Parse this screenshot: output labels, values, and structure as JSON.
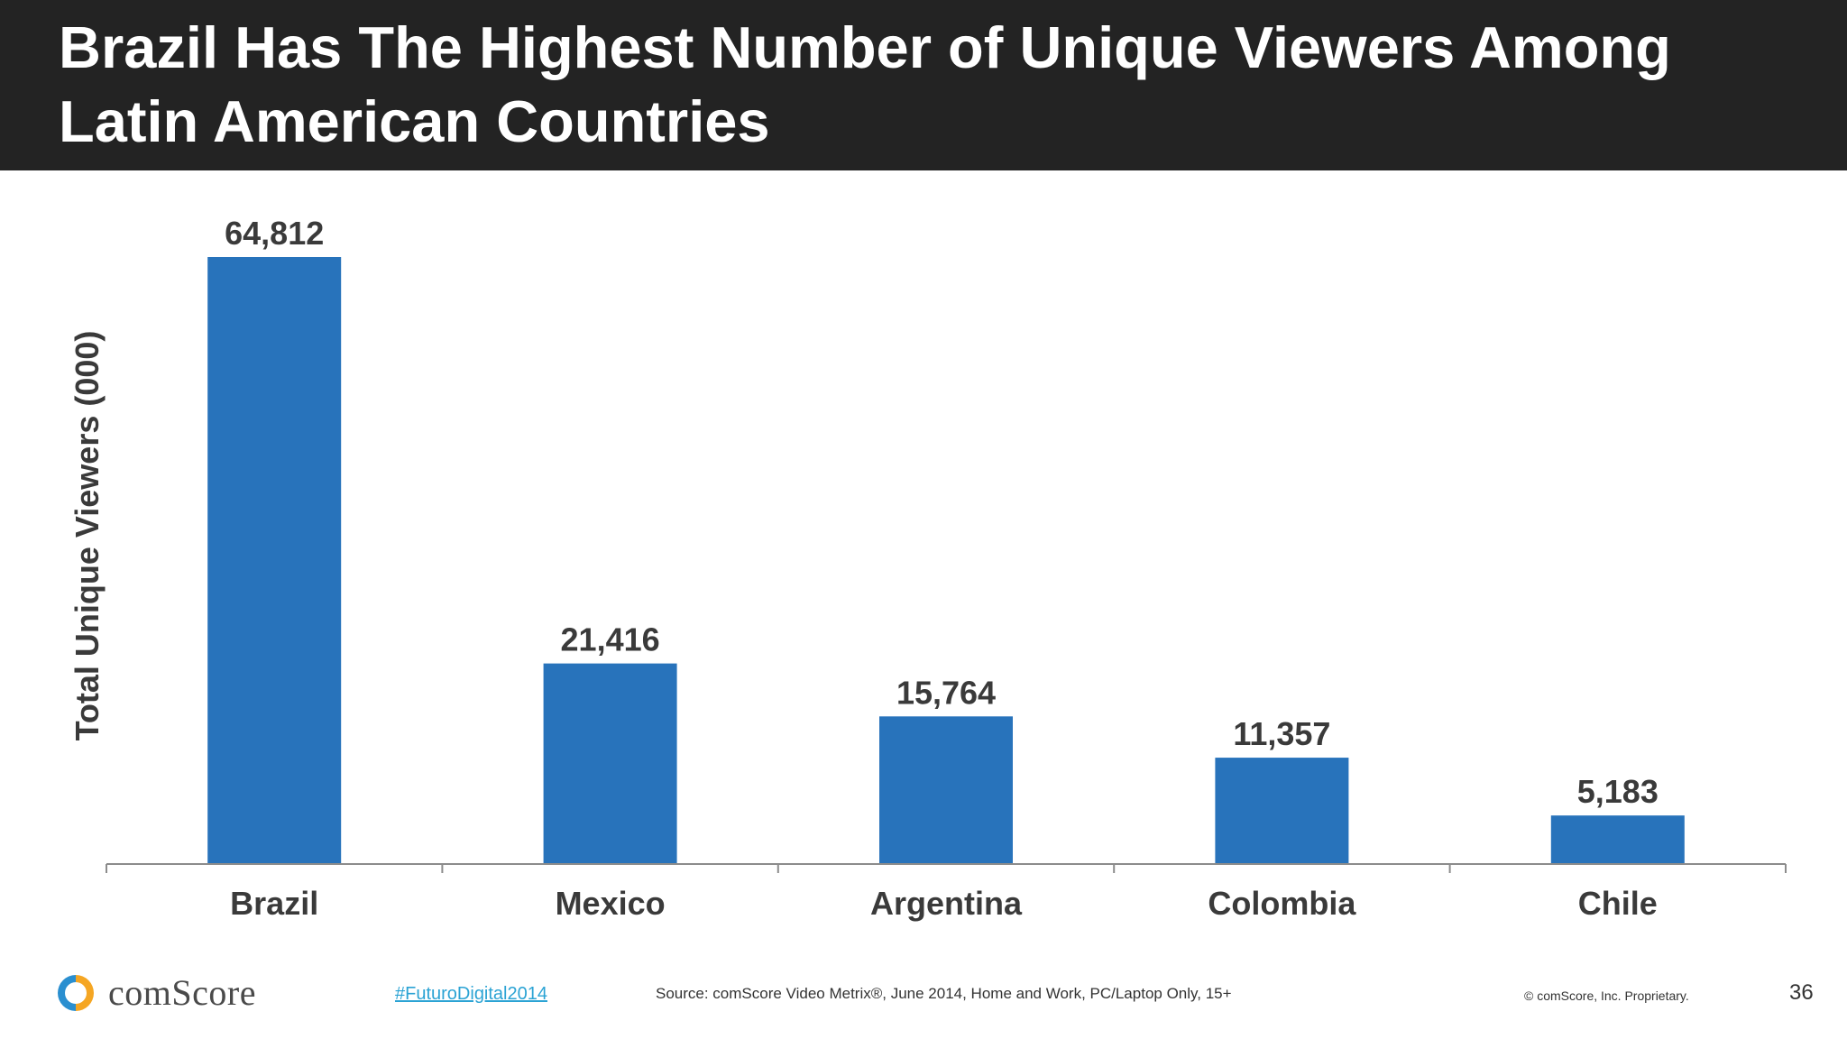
{
  "header": {
    "title": "Brazil Has The Highest Number of Unique Viewers Among Latin American Countries"
  },
  "chart_data": {
    "type": "bar",
    "title": "Brazil Has The Highest Number of Unique Viewers Among Latin American Countries",
    "xlabel": "",
    "ylabel": "Total Unique Viewers (000)",
    "categories": [
      "Brazil",
      "Mexico",
      "Argentina",
      "Colombia",
      "Chile"
    ],
    "values": [
      64812,
      21416,
      15764,
      11357,
      5183
    ],
    "value_labels": [
      "64,812",
      "21,416",
      "15,764",
      "11,357",
      "5,183"
    ],
    "ylim": [
      0,
      64812
    ],
    "grid": false,
    "bar_color": "#2873bb",
    "legend": "none"
  },
  "footer": {
    "logo_text": "comScore",
    "hashtag": "#FuturoDigital2014",
    "source": "Source: comScore Video Metrix®, June 2014, Home and Work, PC/Laptop Only, 15+",
    "copyright": "© comScore, Inc. Proprietary.",
    "page_number": "36"
  }
}
